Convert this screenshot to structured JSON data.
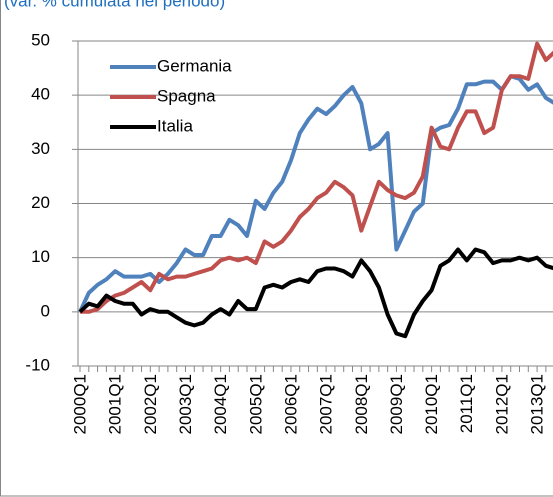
{
  "chart_data": {
    "type": "line",
    "title": "(var. % cumulata nel periodo)",
    "categories": [
      "2000Q1",
      null,
      null,
      null,
      "2001Q1",
      null,
      null,
      null,
      "2002Q1",
      null,
      null,
      null,
      "2003Q1",
      null,
      null,
      null,
      "2004Q1",
      null,
      null,
      null,
      "2005Q1",
      null,
      null,
      null,
      "2006Q1",
      null,
      null,
      null,
      "2007Q1",
      null,
      null,
      null,
      "2008Q1",
      null,
      null,
      null,
      "2009Q1",
      null,
      null,
      null,
      "2010Q1",
      null,
      null,
      null,
      "2011Q1",
      null,
      null,
      null,
      "2012Q1",
      null,
      null,
      null,
      "2013Q1",
      null,
      null
    ],
    "series": [
      {
        "name": "Germania",
        "color": "#4f81bd",
        "values": [
          0,
          3.5,
          5,
          6,
          7.5,
          6.5,
          6.5,
          6.5,
          7,
          5.5,
          7,
          9,
          11.5,
          10.5,
          10.5,
          14,
          14,
          17,
          16,
          14,
          20.5,
          19,
          22,
          24,
          28,
          33,
          35.5,
          37.5,
          36.5,
          38,
          40,
          41.5,
          38.5,
          30,
          31,
          33,
          11.5,
          15,
          18.5,
          20,
          33,
          34,
          34.5,
          37.5,
          42,
          42,
          42.5,
          42.5,
          41,
          43.5,
          43,
          41,
          42,
          39.5,
          38.5
        ]
      },
      {
        "name": "Spagna",
        "color": "#c0504d",
        "values": [
          0,
          0,
          0.5,
          2,
          3,
          3.5,
          4.5,
          5.5,
          4,
          7,
          6,
          6.5,
          6.5,
          7,
          7.5,
          8,
          9.5,
          10,
          9.5,
          10,
          9,
          13,
          12,
          13,
          15,
          17.5,
          19,
          21,
          22,
          24,
          23,
          21.5,
          15,
          19.5,
          24,
          22.5,
          21.5,
          21,
          22,
          25,
          34,
          30.5,
          30,
          34,
          37,
          37,
          33,
          34,
          41,
          43.5,
          43.5,
          43,
          49.5,
          46.5,
          48
        ]
      },
      {
        "name": "Italia",
        "color": "#000000",
        "values": [
          0,
          1.5,
          1,
          3,
          2,
          1.5,
          1.5,
          -0.5,
          0.5,
          0,
          0,
          -1,
          -2,
          -2.5,
          -2,
          -0.5,
          0.5,
          -0.5,
          2,
          0.5,
          0.5,
          4.5,
          5,
          4.5,
          5.5,
          6,
          5.5,
          7.5,
          8,
          8,
          7.5,
          6.5,
          9.5,
          7.5,
          4.5,
          -0.5,
          -4,
          -4.5,
          -0.5,
          2,
          4,
          8.5,
          9.5,
          11.5,
          9.5,
          11.5,
          11,
          9,
          9.5,
          9.5,
          10,
          9.5,
          10,
          8.5,
          8
        ]
      }
    ],
    "ylim": [
      -10,
      50
    ],
    "yticks": [
      -10,
      0,
      10,
      20,
      30,
      40,
      50
    ],
    "grid": true,
    "legend": "upper left"
  }
}
